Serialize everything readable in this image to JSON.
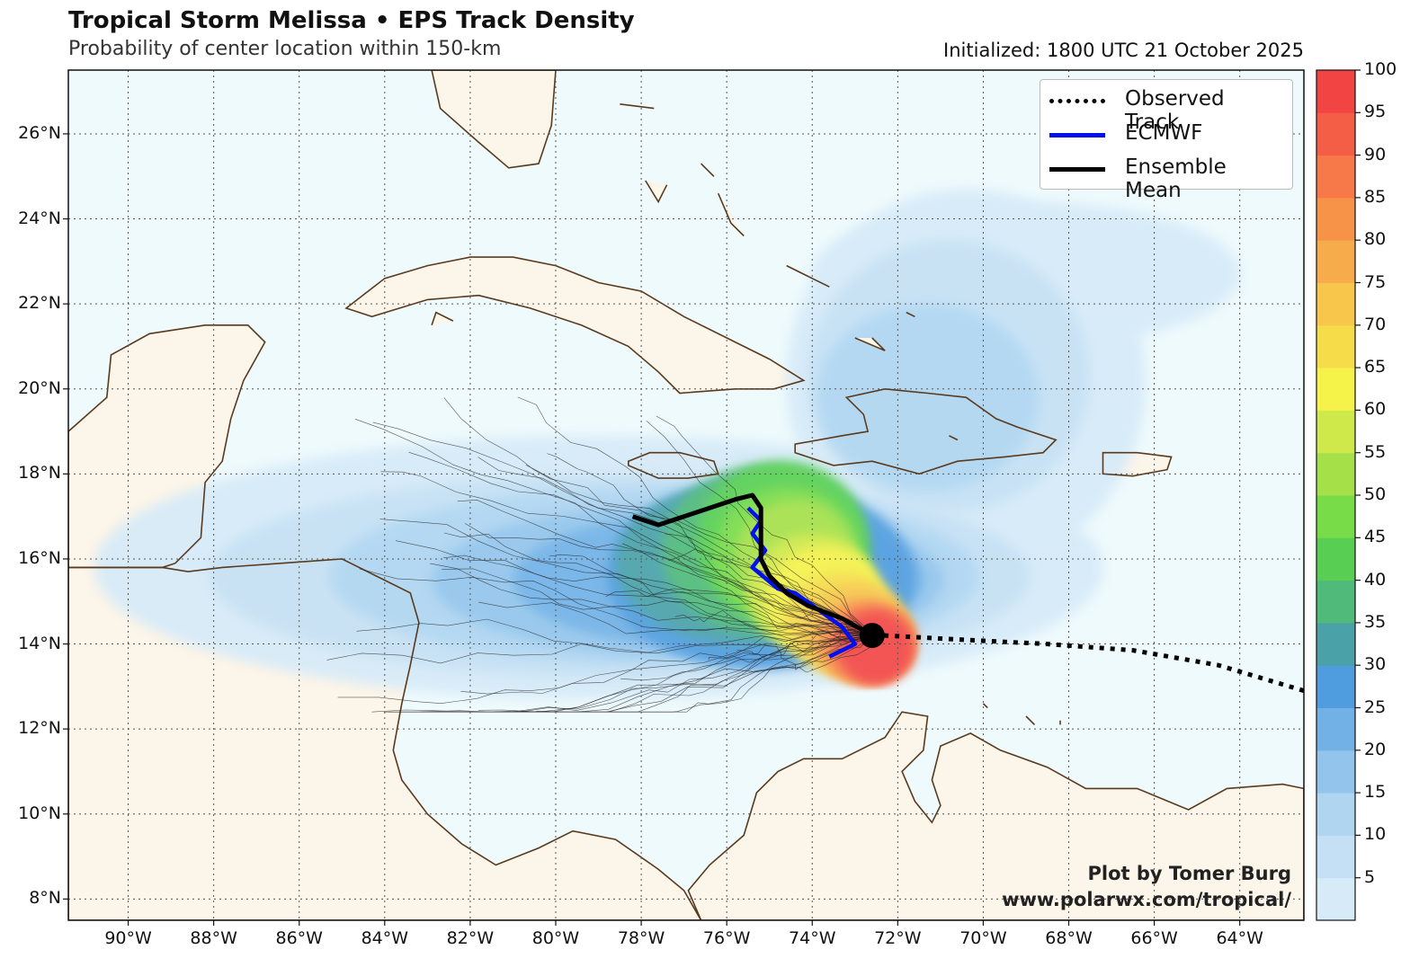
{
  "header": {
    "title": "Tropical Storm Melissa • EPS Track Density",
    "subtitle": "Probability of center location within 150-km",
    "initialized": "Initialized: 1800 UTC 21 October 2025"
  },
  "map": {
    "lon_range": [
      -91.4,
      -62.5
    ],
    "lat_range": [
      7.5,
      27.5
    ],
    "lat_ticks": [
      {
        "value": 26,
        "label": "26°N"
      },
      {
        "value": 24,
        "label": "24°N"
      },
      {
        "value": 22,
        "label": "22°N"
      },
      {
        "value": 20,
        "label": "20°N"
      },
      {
        "value": 18,
        "label": "18°N"
      },
      {
        "value": 16,
        "label": "16°N"
      },
      {
        "value": 14,
        "label": "14°N"
      },
      {
        "value": 12,
        "label": "12°N"
      },
      {
        "value": 10,
        "label": "10°N"
      },
      {
        "value": 8,
        "label": "8°N"
      }
    ],
    "lon_ticks": [
      {
        "value": -90,
        "label": "90°W"
      },
      {
        "value": -88,
        "label": "88°W"
      },
      {
        "value": -86,
        "label": "86°W"
      },
      {
        "value": -84,
        "label": "84°W"
      },
      {
        "value": -82,
        "label": "82°W"
      },
      {
        "value": -80,
        "label": "80°W"
      },
      {
        "value": -78,
        "label": "78°W"
      },
      {
        "value": -76,
        "label": "76°W"
      },
      {
        "value": -74,
        "label": "74°W"
      },
      {
        "value": -72,
        "label": "72°W"
      },
      {
        "value": -70,
        "label": "70°W"
      },
      {
        "value": -68,
        "label": "68°W"
      },
      {
        "value": -66,
        "label": "66°W"
      },
      {
        "value": -64,
        "label": "64°W"
      }
    ],
    "colors": {
      "ocean": "#eefafc",
      "land": "#fcf5e9",
      "coast": "#5a3a1e",
      "grid": "#555555"
    }
  },
  "legend": {
    "observed": "Observed Track",
    "ecmwf": "ECMWF",
    "mean": "Ensemble Mean"
  },
  "colorbar": {
    "levels": [
      0,
      5,
      10,
      15,
      20,
      25,
      30,
      35,
      40,
      45,
      50,
      55,
      60,
      65,
      70,
      75,
      80,
      85,
      90,
      95,
      100
    ],
    "labels": [
      "5",
      "10",
      "15",
      "20",
      "25",
      "30",
      "35",
      "40",
      "45",
      "50",
      "55",
      "60",
      "65",
      "70",
      "75",
      "80",
      "85",
      "90",
      "95",
      "100"
    ],
    "colors": [
      "#d6eaf8",
      "#c5e0f4",
      "#afd5f1",
      "#93c5ec",
      "#71b1e6",
      "#4f9cdf",
      "#4aa2a8",
      "#4fba7a",
      "#58cf52",
      "#78db48",
      "#a5e049",
      "#cfe84a",
      "#f5f24a",
      "#f7dc4a",
      "#f7c64a",
      "#f7ac4b",
      "#f79249",
      "#f77848",
      "#f55e46",
      "#f34444"
    ]
  },
  "tracks": {
    "observed": [
      [
        -62.5,
        12.9
      ],
      [
        -64.5,
        13.5
      ],
      [
        -66.5,
        13.85
      ],
      [
        -68.5,
        14.0
      ],
      [
        -70.5,
        14.1
      ],
      [
        -72.3,
        14.2
      ],
      [
        -72.6,
        14.2
      ]
    ],
    "ecmwf": [
      [
        -73.6,
        13.7
      ],
      [
        -73.0,
        14.0
      ],
      [
        -73.3,
        14.4
      ],
      [
        -74.4,
        15.2
      ],
      [
        -74.8,
        15.3
      ],
      [
        -75.4,
        15.8
      ],
      [
        -75.1,
        16.2
      ],
      [
        -75.4,
        16.6
      ],
      [
        -75.2,
        16.9
      ],
      [
        -75.5,
        17.2
      ]
    ],
    "mean": [
      [
        -72.6,
        14.2
      ],
      [
        -73.3,
        14.6
      ],
      [
        -74.1,
        14.9
      ],
      [
        -74.6,
        15.2
      ],
      [
        -75.0,
        15.6
      ],
      [
        -75.2,
        16.0
      ],
      [
        -75.2,
        16.6
      ],
      [
        -75.2,
        17.2
      ],
      [
        -75.4,
        17.5
      ],
      [
        -75.8,
        17.4
      ],
      [
        -76.4,
        17.2
      ],
      [
        -77.0,
        17.0
      ],
      [
        -77.6,
        16.8
      ],
      [
        -78.2,
        17.0
      ]
    ],
    "initial_position": [
      -72.6,
      14.2
    ]
  },
  "density_blobs": [
    {
      "level": 0,
      "cx": -79.0,
      "cy": 15.8,
      "rx": 11.8,
      "ry": 3.1
    },
    {
      "level": 0,
      "cx": -70.4,
      "cy": 20.2,
      "rx": 4.2,
      "ry": 4.5
    },
    {
      "level": 0,
      "cx": -69.0,
      "cy": 22.7,
      "rx": 5.0,
      "ry": 1.7
    },
    {
      "level": 1,
      "cx": -78.5,
      "cy": 15.6,
      "rx": 9.6,
      "ry": 2.4
    },
    {
      "level": 1,
      "cx": -70.8,
      "cy": 20.3,
      "rx": 3.3,
      "ry": 3.2
    },
    {
      "level": 2,
      "cx": -77.7,
      "cy": 15.6,
      "rx": 7.6,
      "ry": 2.1
    },
    {
      "level": 2,
      "cx": -71.3,
      "cy": 19.8,
      "rx": 2.6,
      "ry": 2.2
    },
    {
      "level": 3,
      "cx": -76.9,
      "cy": 15.5,
      "rx": 6.0,
      "ry": 1.8
    },
    {
      "level": 4,
      "cx": -76.2,
      "cy": 15.5,
      "rx": 4.8,
      "ry": 1.6
    },
    {
      "level": 5,
      "cx": -75.2,
      "cy": 15.6,
      "rx": 3.6,
      "ry": 2.2
    },
    {
      "level": 6,
      "cx": -75.6,
      "cy": 15.9,
      "rx": 3.0,
      "ry": 1.9
    },
    {
      "level": 7,
      "cx": -75.1,
      "cy": 16.2,
      "rx": 2.4,
      "ry": 2.0
    },
    {
      "level": 8,
      "cx": -74.7,
      "cy": 16.4,
      "rx": 2.0,
      "ry": 1.9
    },
    {
      "level": 9,
      "cx": -74.6,
      "cy": 16.1,
      "rx": 1.7,
      "ry": 1.6
    },
    {
      "level": 10,
      "cx": -74.4,
      "cy": 16.0,
      "rx": 1.4,
      "ry": 1.4
    },
    {
      "level": 11,
      "cx": -74.0,
      "cy": 15.2,
      "rx": 1.5,
      "ry": 1.4
    },
    {
      "level": 12,
      "cx": -73.7,
      "cy": 15.0,
      "rx": 1.4,
      "ry": 1.3
    },
    {
      "level": 13,
      "cx": -73.3,
      "cy": 14.5,
      "rx": 1.4,
      "ry": 1.2
    },
    {
      "level": 14,
      "cx": -73.0,
      "cy": 14.3,
      "rx": 1.3,
      "ry": 1.1
    },
    {
      "level": 15,
      "cx": -72.8,
      "cy": 14.1,
      "rx": 1.2,
      "ry": 1.0
    },
    {
      "level": 16,
      "cx": -72.7,
      "cy": 14.0,
      "rx": 1.1,
      "ry": 0.95
    },
    {
      "level": 17,
      "cx": -72.6,
      "cy": 14.0,
      "rx": 1.0,
      "ry": 0.9
    },
    {
      "level": 18,
      "cx": -72.55,
      "cy": 13.95,
      "rx": 0.9,
      "ry": 0.85
    },
    {
      "level": 19,
      "cx": -72.5,
      "cy": 13.9,
      "rx": 0.8,
      "ry": 0.8
    }
  ],
  "land": [
    {
      "name": "mexico-yucatan",
      "pts": [
        [
          -91.4,
          19.0
        ],
        [
          -90.5,
          19.8
        ],
        [
          -90.4,
          20.8
        ],
        [
          -89.5,
          21.3
        ],
        [
          -88.2,
          21.5
        ],
        [
          -87.2,
          21.5
        ],
        [
          -86.8,
          21.1
        ],
        [
          -87.3,
          20.2
        ],
        [
          -87.6,
          19.3
        ],
        [
          -87.8,
          18.3
        ],
        [
          -88.2,
          17.8
        ],
        [
          -88.3,
          16.5
        ],
        [
          -88.9,
          15.9
        ],
        [
          -89.2,
          15.8
        ],
        [
          -91.4,
          15.8
        ]
      ]
    },
    {
      "name": "central-america",
      "pts": [
        [
          -91.4,
          15.8
        ],
        [
          -89.2,
          15.8
        ],
        [
          -88.6,
          15.7
        ],
        [
          -87.8,
          15.8
        ],
        [
          -86.4,
          15.9
        ],
        [
          -85.0,
          16.0
        ],
        [
          -84.2,
          15.6
        ],
        [
          -83.4,
          15.2
        ],
        [
          -83.2,
          14.5
        ],
        [
          -83.4,
          13.5
        ],
        [
          -83.6,
          12.6
        ],
        [
          -83.8,
          11.5
        ],
        [
          -83.6,
          10.8
        ],
        [
          -83.0,
          10.0
        ],
        [
          -82.2,
          9.3
        ],
        [
          -81.4,
          8.8
        ],
        [
          -80.4,
          9.2
        ],
        [
          -79.6,
          9.6
        ],
        [
          -78.6,
          9.4
        ],
        [
          -77.6,
          8.7
        ],
        [
          -77.0,
          8.2
        ],
        [
          -76.6,
          7.5
        ],
        [
          -91.4,
          7.5
        ]
      ]
    },
    {
      "name": "south-america",
      "pts": [
        [
          -76.6,
          7.5
        ],
        [
          -76.9,
          8.2
        ],
        [
          -76.4,
          8.8
        ],
        [
          -75.6,
          9.5
        ],
        [
          -75.3,
          10.5
        ],
        [
          -74.8,
          11.0
        ],
        [
          -74.2,
          11.3
        ],
        [
          -73.3,
          11.3
        ],
        [
          -72.3,
          11.8
        ],
        [
          -71.9,
          12.4
        ],
        [
          -71.3,
          12.3
        ],
        [
          -71.4,
          11.5
        ],
        [
          -71.9,
          11.0
        ],
        [
          -71.6,
          10.3
        ],
        [
          -71.2,
          9.8
        ],
        [
          -71.0,
          10.2
        ],
        [
          -71.2,
          10.8
        ],
        [
          -71.0,
          11.6
        ],
        [
          -70.3,
          11.9
        ],
        [
          -69.6,
          11.5
        ],
        [
          -68.5,
          11.1
        ],
        [
          -67.6,
          10.6
        ],
        [
          -66.4,
          10.6
        ],
        [
          -65.2,
          10.1
        ],
        [
          -64.3,
          10.6
        ],
        [
          -63.0,
          10.7
        ],
        [
          -62.5,
          10.6
        ],
        [
          -62.5,
          7.5
        ]
      ]
    },
    {
      "name": "cuba",
      "pts": [
        [
          -84.9,
          21.9
        ],
        [
          -84.0,
          22.6
        ],
        [
          -83.0,
          22.9
        ],
        [
          -82.0,
          23.1
        ],
        [
          -81.0,
          23.1
        ],
        [
          -80.0,
          22.9
        ],
        [
          -79.0,
          22.5
        ],
        [
          -78.0,
          22.3
        ],
        [
          -77.0,
          21.7
        ],
        [
          -76.0,
          21.2
        ],
        [
          -75.0,
          20.7
        ],
        [
          -74.2,
          20.2
        ],
        [
          -74.9,
          20.0
        ],
        [
          -75.8,
          20.0
        ],
        [
          -77.1,
          19.9
        ],
        [
          -77.6,
          20.4
        ],
        [
          -78.3,
          21.0
        ],
        [
          -79.4,
          21.5
        ],
        [
          -80.6,
          21.9
        ],
        [
          -81.8,
          22.2
        ],
        [
          -83.0,
          22.1
        ],
        [
          -84.3,
          21.7
        ]
      ]
    },
    {
      "name": "hispaniola",
      "pts": [
        [
          -74.4,
          18.5
        ],
        [
          -73.5,
          18.2
        ],
        [
          -72.6,
          18.3
        ],
        [
          -71.5,
          18.0
        ],
        [
          -70.6,
          18.3
        ],
        [
          -69.5,
          18.4
        ],
        [
          -68.6,
          18.5
        ],
        [
          -68.3,
          18.8
        ],
        [
          -69.2,
          19.1
        ],
        [
          -69.7,
          19.3
        ],
        [
          -70.4,
          19.8
        ],
        [
          -71.3,
          19.9
        ],
        [
          -72.3,
          20.0
        ],
        [
          -73.2,
          19.8
        ],
        [
          -72.8,
          19.4
        ],
        [
          -72.7,
          19.0
        ],
        [
          -73.3,
          18.9
        ],
        [
          -74.4,
          18.7
        ]
      ]
    },
    {
      "name": "jamaica",
      "pts": [
        [
          -78.3,
          18.3
        ],
        [
          -77.8,
          18.5
        ],
        [
          -77.1,
          18.5
        ],
        [
          -76.3,
          18.3
        ],
        [
          -76.2,
          18.0
        ],
        [
          -76.9,
          17.9
        ],
        [
          -77.6,
          17.9
        ],
        [
          -78.3,
          18.2
        ]
      ]
    },
    {
      "name": "puerto-rico",
      "pts": [
        [
          -67.2,
          18.5
        ],
        [
          -66.4,
          18.5
        ],
        [
          -65.6,
          18.4
        ],
        [
          -65.7,
          18.1
        ],
        [
          -66.5,
          17.95
        ],
        [
          -67.2,
          18.0
        ]
      ]
    },
    {
      "name": "florida",
      "pts": [
        [
          -82.9,
          27.5
        ],
        [
          -82.7,
          26.6
        ],
        [
          -81.8,
          25.8
        ],
        [
          -81.1,
          25.2
        ],
        [
          -80.4,
          25.3
        ],
        [
          -80.1,
          26.2
        ],
        [
          -80.0,
          27.5
        ]
      ]
    }
  ],
  "islands": [
    [
      [
        -77.9,
        24.9
      ],
      [
        -77.6,
        24.4
      ],
      [
        -77.4,
        24.8
      ]
    ],
    [
      [
        -76.2,
        24.6
      ],
      [
        -75.9,
        23.9
      ],
      [
        -75.6,
        23.6
      ]
    ],
    [
      [
        -74.6,
        22.9
      ],
      [
        -74.0,
        22.6
      ],
      [
        -73.6,
        22.4
      ]
    ],
    [
      [
        -73.0,
        21.2
      ],
      [
        -72.3,
        20.9
      ],
      [
        -72.6,
        21.2
      ]
    ],
    [
      [
        -71.8,
        21.8
      ],
      [
        -71.6,
        21.7
      ]
    ],
    [
      [
        -70.8,
        18.9
      ],
      [
        -70.6,
        18.8
      ]
    ],
    [
      [
        -70.0,
        12.6
      ],
      [
        -69.9,
        12.5
      ]
    ],
    [
      [
        -69.0,
        12.3
      ],
      [
        -68.8,
        12.1
      ]
    ],
    [
      [
        -68.2,
        12.2
      ],
      [
        -68.2,
        12.1
      ]
    ],
    [
      [
        -76.6,
        25.3
      ],
      [
        -76.3,
        25.0
      ]
    ],
    [
      [
        -78.5,
        26.7
      ],
      [
        -77.7,
        26.6
      ]
    ],
    [
      [
        -82.4,
        21.6
      ],
      [
        -82.8,
        21.8
      ],
      [
        -82.9,
        21.5
      ]
    ]
  ],
  "credit": {
    "line1": "Plot by Tomer Burg",
    "line2": "www.polarwx.com/tropical/"
  }
}
